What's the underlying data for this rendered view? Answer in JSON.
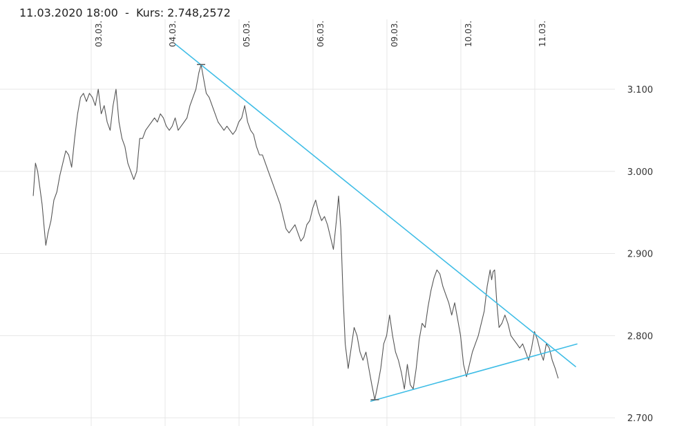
{
  "header": {
    "date": "11.03.2020 18:00",
    "separator": "-",
    "price_label": "Kurs:",
    "price_value": "2.748,2572"
  },
  "colors": {
    "line": "#555555",
    "trend": "#3fbde6",
    "grid": "#e6e6e6",
    "text": "#333333"
  },
  "chart_data": {
    "type": "line",
    "title": "",
    "xlabel": "",
    "ylabel": "",
    "ylim": [
      2690,
      3185
    ],
    "grid": true,
    "x_ticks": [
      {
        "label": "03.03.",
        "x": 1
      },
      {
        "label": "04.03.",
        "x": 2
      },
      {
        "label": "05.03.",
        "x": 3
      },
      {
        "label": "06.03.",
        "x": 4
      },
      {
        "label": "09.03.",
        "x": 5
      },
      {
        "label": "10.03.",
        "x": 6
      },
      {
        "label": "11.03.",
        "x": 7
      }
    ],
    "y_ticks": [
      {
        "label": "2.700",
        "value": 2700
      },
      {
        "label": "2.800",
        "value": 2800
      },
      {
        "label": "2.900",
        "value": 2900
      },
      {
        "label": "3.000",
        "value": 3000
      },
      {
        "label": "3.100",
        "value": 3100
      }
    ],
    "xlim": [
      0.15,
      7.55
    ],
    "series": [
      {
        "points": [
          [
            0.16,
            2970
          ],
          [
            0.19,
            3010
          ],
          [
            0.22,
            3000
          ],
          [
            0.25,
            2980
          ],
          [
            0.28,
            2960
          ],
          [
            0.31,
            2930
          ],
          [
            0.33,
            2910
          ],
          [
            0.36,
            2925
          ],
          [
            0.4,
            2940
          ],
          [
            0.44,
            2965
          ],
          [
            0.48,
            2975
          ],
          [
            0.52,
            2995
          ],
          [
            0.56,
            3010
          ],
          [
            0.6,
            3025
          ],
          [
            0.64,
            3020
          ],
          [
            0.68,
            3005
          ],
          [
            0.72,
            3040
          ],
          [
            0.76,
            3070
          ],
          [
            0.8,
            3090
          ],
          [
            0.84,
            3095
          ],
          [
            0.88,
            3085
          ],
          [
            0.92,
            3095
          ],
          [
            0.96,
            3090
          ],
          [
            1.0,
            3080
          ],
          [
            1.04,
            3100
          ],
          [
            1.08,
            3070
          ],
          [
            1.12,
            3080
          ],
          [
            1.16,
            3060
          ],
          [
            1.2,
            3050
          ],
          [
            1.24,
            3080
          ],
          [
            1.28,
            3100
          ],
          [
            1.32,
            3060
          ],
          [
            1.36,
            3040
          ],
          [
            1.4,
            3030
          ],
          [
            1.44,
            3010
          ],
          [
            1.48,
            3000
          ],
          [
            1.52,
            2990
          ],
          [
            1.56,
            3000
          ],
          [
            1.6,
            3040
          ],
          [
            1.64,
            3040
          ],
          [
            1.68,
            3050
          ],
          [
            1.72,
            3055
          ],
          [
            1.76,
            3060
          ],
          [
            1.8,
            3065
          ],
          [
            1.84,
            3060
          ],
          [
            1.88,
            3070
          ],
          [
            1.92,
            3065
          ],
          [
            1.96,
            3055
          ],
          [
            2.0,
            3050
          ],
          [
            2.04,
            3055
          ],
          [
            2.08,
            3065
          ],
          [
            2.12,
            3050
          ],
          [
            2.16,
            3055
          ],
          [
            2.2,
            3060
          ],
          [
            2.24,
            3065
          ],
          [
            2.28,
            3080
          ],
          [
            2.32,
            3090
          ],
          [
            2.36,
            3100
          ],
          [
            2.4,
            3120
          ],
          [
            2.43,
            3130
          ],
          [
            2.46,
            3115
          ],
          [
            2.5,
            3095
          ],
          [
            2.54,
            3090
          ],
          [
            2.58,
            3080
          ],
          [
            2.62,
            3070
          ],
          [
            2.66,
            3060
          ],
          [
            2.7,
            3055
          ],
          [
            2.74,
            3050
          ],
          [
            2.78,
            3055
          ],
          [
            2.82,
            3050
          ],
          [
            2.86,
            3045
          ],
          [
            2.9,
            3050
          ],
          [
            2.94,
            3060
          ],
          [
            2.98,
            3065
          ],
          [
            3.02,
            3080
          ],
          [
            3.06,
            3060
          ],
          [
            3.1,
            3050
          ],
          [
            3.14,
            3045
          ],
          [
            3.18,
            3030
          ],
          [
            3.22,
            3020
          ],
          [
            3.26,
            3020
          ],
          [
            3.3,
            3010
          ],
          [
            3.34,
            3000
          ],
          [
            3.38,
            2990
          ],
          [
            3.42,
            2980
          ],
          [
            3.46,
            2970
          ],
          [
            3.5,
            2960
          ],
          [
            3.54,
            2945
          ],
          [
            3.58,
            2930
          ],
          [
            3.62,
            2925
          ],
          [
            3.66,
            2930
          ],
          [
            3.7,
            2935
          ],
          [
            3.74,
            2925
          ],
          [
            3.78,
            2915
          ],
          [
            3.82,
            2920
          ],
          [
            3.86,
            2935
          ],
          [
            3.9,
            2940
          ],
          [
            3.94,
            2955
          ],
          [
            3.98,
            2965
          ],
          [
            4.02,
            2950
          ],
          [
            4.06,
            2940
          ],
          [
            4.1,
            2945
          ],
          [
            4.14,
            2935
          ],
          [
            4.18,
            2920
          ],
          [
            4.22,
            2905
          ],
          [
            4.26,
            2940
          ],
          [
            4.29,
            2970
          ],
          [
            4.32,
            2930
          ],
          [
            4.35,
            2850
          ],
          [
            4.38,
            2790
          ],
          [
            4.42,
            2760
          ],
          [
            4.46,
            2785
          ],
          [
            4.5,
            2810
          ],
          [
            4.54,
            2800
          ],
          [
            4.58,
            2780
          ],
          [
            4.62,
            2770
          ],
          [
            4.66,
            2780
          ],
          [
            4.7,
            2760
          ],
          [
            4.74,
            2740
          ],
          [
            4.78,
            2722
          ],
          [
            4.82,
            2740
          ],
          [
            4.86,
            2760
          ],
          [
            4.9,
            2790
          ],
          [
            4.94,
            2800
          ],
          [
            4.98,
            2825
          ],
          [
            5.02,
            2800
          ],
          [
            5.06,
            2780
          ],
          [
            5.1,
            2770
          ],
          [
            5.14,
            2755
          ],
          [
            5.18,
            2735
          ],
          [
            5.22,
            2765
          ],
          [
            5.26,
            2740
          ],
          [
            5.3,
            2735
          ],
          [
            5.34,
            2760
          ],
          [
            5.38,
            2795
          ],
          [
            5.42,
            2815
          ],
          [
            5.46,
            2810
          ],
          [
            5.5,
            2835
          ],
          [
            5.54,
            2855
          ],
          [
            5.58,
            2870
          ],
          [
            5.62,
            2880
          ],
          [
            5.66,
            2875
          ],
          [
            5.7,
            2860
          ],
          [
            5.74,
            2850
          ],
          [
            5.78,
            2840
          ],
          [
            5.82,
            2825
          ],
          [
            5.86,
            2840
          ],
          [
            5.9,
            2820
          ],
          [
            5.94,
            2800
          ],
          [
            5.98,
            2765
          ],
          [
            6.02,
            2750
          ],
          [
            6.06,
            2765
          ],
          [
            6.1,
            2780
          ],
          [
            6.14,
            2790
          ],
          [
            6.18,
            2800
          ],
          [
            6.22,
            2815
          ],
          [
            6.26,
            2830
          ],
          [
            6.3,
            2860
          ],
          [
            6.34,
            2880
          ],
          [
            6.36,
            2868
          ],
          [
            6.38,
            2878
          ],
          [
            6.4,
            2880
          ],
          [
            6.43,
            2840
          ],
          [
            6.46,
            2810
          ],
          [
            6.5,
            2815
          ],
          [
            6.54,
            2825
          ],
          [
            6.58,
            2815
          ],
          [
            6.62,
            2800
          ],
          [
            6.66,
            2795
          ],
          [
            6.7,
            2790
          ],
          [
            6.74,
            2785
          ],
          [
            6.78,
            2790
          ],
          [
            6.82,
            2780
          ],
          [
            6.86,
            2770
          ],
          [
            6.9,
            2785
          ],
          [
            6.94,
            2805
          ],
          [
            6.98,
            2795
          ],
          [
            7.02,
            2780
          ],
          [
            7.06,
            2770
          ],
          [
            7.1,
            2790
          ],
          [
            7.14,
            2785
          ],
          [
            7.18,
            2770
          ],
          [
            7.22,
            2760
          ],
          [
            7.26,
            2748
          ]
        ]
      }
    ],
    "annotations": [
      {
        "type": "trendline",
        "points": [
          [
            2.08,
            3155
          ],
          [
            7.5,
            2762
          ]
        ]
      },
      {
        "type": "trendline",
        "points": [
          [
            4.72,
            2720
          ],
          [
            7.52,
            2790
          ]
        ]
      },
      {
        "type": "marker",
        "x": 2.43,
        "y": 3130
      },
      {
        "type": "marker",
        "x": 4.78,
        "y": 2722
      }
    ]
  }
}
